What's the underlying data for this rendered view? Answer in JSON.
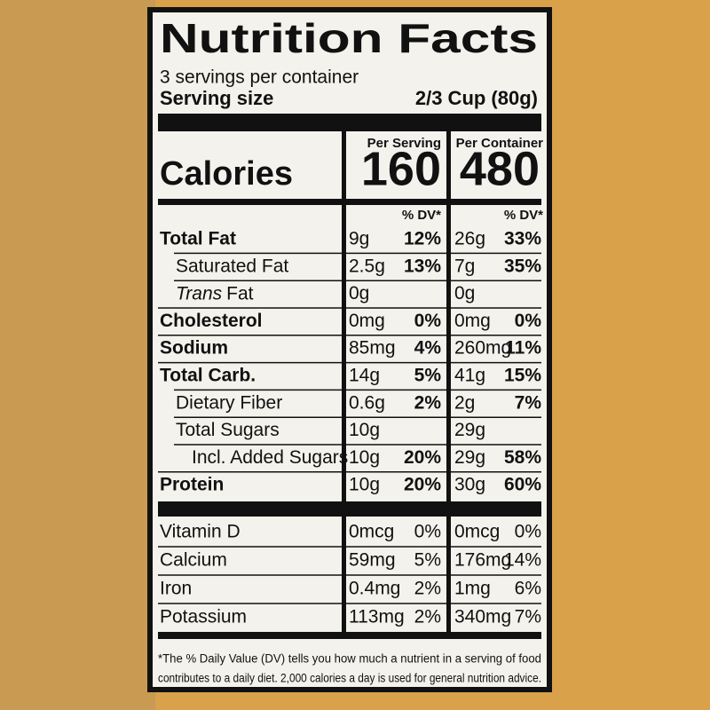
{
  "label": {
    "title": "Nutrition Facts",
    "servings": "3 servings per container",
    "serving_size_label": "Serving size",
    "serving_size": "2/3 Cup (80g)",
    "columns": [
      "Per Serving",
      "Per Container"
    ],
    "calories_label": "Calories",
    "calories": [
      "160",
      "480"
    ],
    "dv_header": "% DV*",
    "rows": [
      {
        "name": "Total Fat",
        "bold": true,
        "indent": 0,
        "values": [
          "9g",
          "12%",
          "26g",
          "33%"
        ]
      },
      {
        "name": "Saturated Fat",
        "bold": false,
        "indent": 1,
        "values": [
          "2.5g",
          "13%",
          "7g",
          "35%"
        ]
      },
      {
        "name_italic": "Trans",
        "name": "Fat",
        "bold": false,
        "indent": 1,
        "values": [
          "0g",
          "",
          "0g",
          ""
        ]
      },
      {
        "name": "Cholesterol",
        "bold": true,
        "indent": 0,
        "values": [
          "0mg",
          "0%",
          "0mg",
          "0%"
        ]
      },
      {
        "name": "Sodium",
        "bold": true,
        "indent": 0,
        "values": [
          "85mg",
          "4%",
          "260mg",
          "11%"
        ]
      },
      {
        "name": "Total Carb.",
        "bold": true,
        "indent": 0,
        "values": [
          "14g",
          "5%",
          "41g",
          "15%"
        ]
      },
      {
        "name": "Dietary Fiber",
        "bold": false,
        "indent": 1,
        "values": [
          "0.6g",
          "2%",
          "2g",
          "7%"
        ]
      },
      {
        "name": "Total Sugars",
        "bold": false,
        "indent": 1,
        "values": [
          "10g",
          "",
          "29g",
          ""
        ]
      },
      {
        "name": "Incl. Added Sugars",
        "bold": false,
        "indent": 2,
        "values": [
          "10g",
          "20%",
          "29g",
          "58%"
        ]
      },
      {
        "name": "Protein",
        "bold": true,
        "indent": 0,
        "values": [
          "10g",
          "20%",
          "30g",
          "60%"
        ]
      }
    ],
    "vitamins": [
      {
        "name": "Vitamin D",
        "values": [
          "0mcg",
          "0%",
          "0mcg",
          "0%"
        ]
      },
      {
        "name": "Calcium",
        "values": [
          "59mg",
          "5%",
          "176mg",
          "14%"
        ]
      },
      {
        "name": "Iron",
        "values": [
          "0.4mg",
          "2%",
          "1mg",
          "6%"
        ]
      },
      {
        "name": "Potassium",
        "values": [
          "113mg",
          "2%",
          "340mg",
          "7%"
        ]
      }
    ],
    "footnote": [
      "*The % Daily Value (DV) tells you how much a nutrient in a serving of food",
      "contributes to a daily diet. 2,000 calories a day is used for general nutrition advice."
    ]
  }
}
